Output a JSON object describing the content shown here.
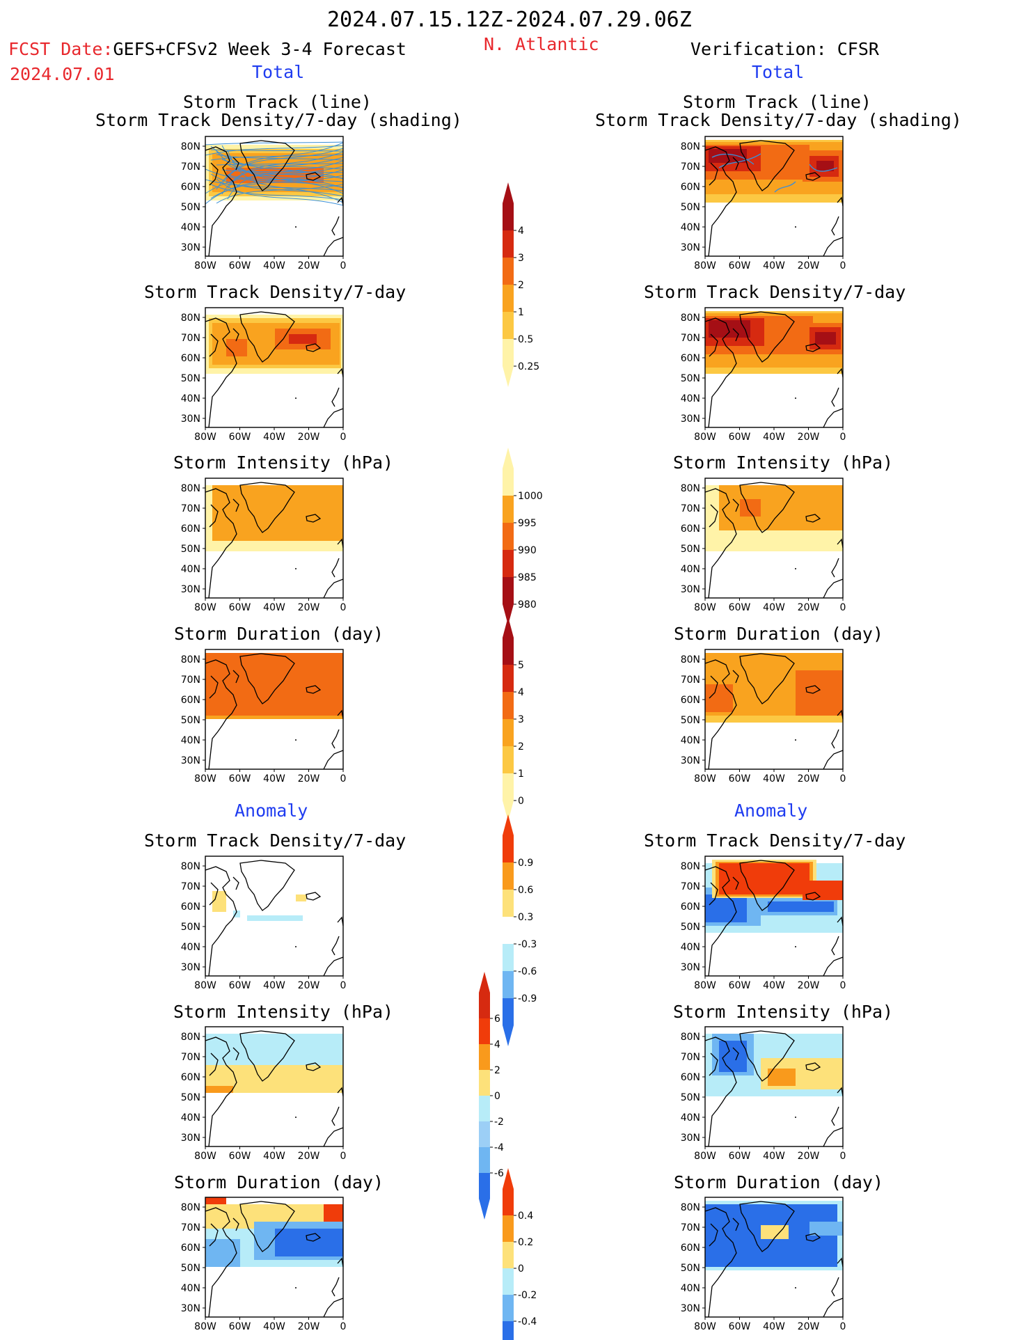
{
  "header": {
    "date_range": "2024.07.15.12Z-2024.07.29.06Z",
    "fcst_label": "FCST Date:",
    "fcst_model": "GEFS+CFSv2 Week 3-4 Forecast",
    "fcst_date": "2024.07.01",
    "region": "N. Atlantic",
    "verification": "Verification: CFSR"
  },
  "sections": {
    "total_left": "Total",
    "total_right": "Total",
    "anomaly_left": "Anomaly",
    "anomaly_right": "Anomaly"
  },
  "titles": {
    "track_line": "Storm Track (line)",
    "track_shading": "Storm Track Density/7-day (shading)",
    "density": "Storm Track Density/7-day",
    "intensity": "Storm Intensity (hPa)",
    "duration": "Storm Duration (day)"
  },
  "axes": {
    "lat_ticks": [
      "80N",
      "70N",
      "60N",
      "50N",
      "40N",
      "30N"
    ],
    "lon_ticks": [
      "80W",
      "60W",
      "40W",
      "20W",
      "0"
    ]
  },
  "colorbars": {
    "density": {
      "labels": [
        "4",
        "3",
        "2",
        "1",
        "0.5",
        "0.25"
      ],
      "colors": [
        "#a50f15",
        "#d62a10",
        "#f26b14",
        "#f9a31f",
        "#fcc843",
        "#fff3a8"
      ]
    },
    "intensity": {
      "labels": [
        "1000",
        "995",
        "990",
        "985",
        "980"
      ],
      "colors": [
        "#fff3a8",
        "#f9a31f",
        "#f26b14",
        "#d62a10",
        "#a50f15"
      ]
    },
    "duration": {
      "labels": [
        "5",
        "4",
        "3",
        "2",
        "1",
        "0"
      ],
      "colors": [
        "#a50f15",
        "#d62a10",
        "#f26b14",
        "#f9a31f",
        "#fcc843",
        "#fff3a8"
      ]
    },
    "anom_density": {
      "labels": [
        "0.9",
        "0.6",
        "0.3",
        "-0.3",
        "-0.6",
        "-0.9"
      ],
      "colors": [
        "#f03c0a",
        "#f99a1c",
        "#fde17a",
        "#ffffff",
        "#b7ecf8",
        "#6fb6f2",
        "#2a6fe8"
      ]
    },
    "anom_intensity": {
      "labels": [
        "6",
        "4",
        "2",
        "0",
        "-2",
        "-4",
        "-6"
      ],
      "colors": [
        "#d62a10",
        "#f03c0a",
        "#f99a1c",
        "#fde17a",
        "#b7ecf8",
        "#9ccff6",
        "#6fb6f2",
        "#2a6fe8"
      ]
    },
    "anom_duration": {
      "labels": [
        "0.4",
        "0.2",
        "0",
        "-0.2",
        "-0.4"
      ],
      "colors": [
        "#f03c0a",
        "#f99a1c",
        "#fde17a",
        "#b7ecf8",
        "#6fb6f2",
        "#2a6fe8"
      ]
    }
  }
}
